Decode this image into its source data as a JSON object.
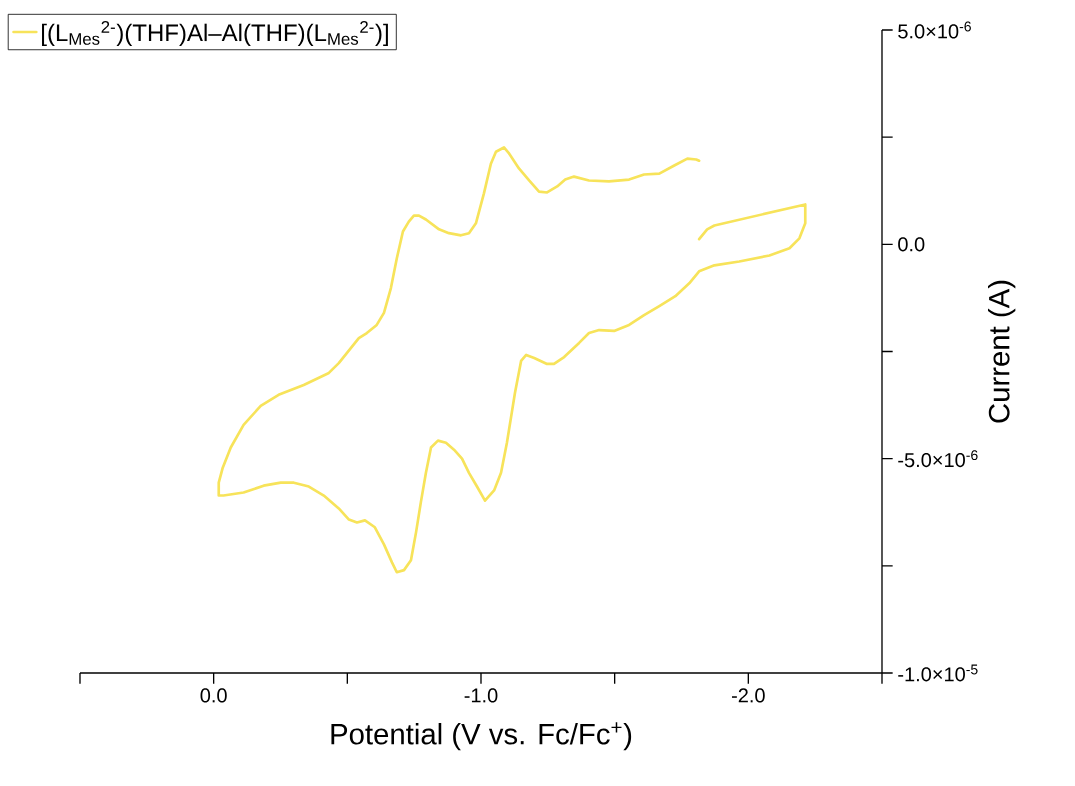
{
  "chart_data": {
    "type": "line",
    "xlabel": "Potential (V vs. Fc/Fc$^{+}$)",
    "ylabel": "Current (A)",
    "xlim": [
      0.5,
      -2.5
    ],
    "ylim": [
      -1e-05,
      5e-06
    ],
    "xticks": [
      {
        "value": 0.5,
        "label": null
      },
      {
        "value": 0.0,
        "label": "0.0"
      },
      {
        "value": -0.5,
        "label": null
      },
      {
        "value": -1.0,
        "label": "-1.0"
      },
      {
        "value": -1.5,
        "label": null
      },
      {
        "value": -2.0,
        "label": "-2.0"
      },
      {
        "value": -2.5,
        "label": null
      }
    ],
    "yticks": [
      {
        "value": -1e-05,
        "label": "-1.0×10$^{-5}$"
      },
      {
        "value": -7.5e-06,
        "label": null
      },
      {
        "value": -5e-06,
        "label": "-5.0×10$^{-6}$"
      },
      {
        "value": -2.5e-06,
        "label": null
      },
      {
        "value": 0,
        "label": "0.0"
      },
      {
        "value": 2.5e-06,
        "label": null
      },
      {
        "value": 5e-06,
        "label": "5.0×10$^{-6}$"
      }
    ],
    "x": [
      -1.816,
      -1.846,
      -1.873,
      -2.213,
      -2.213,
      -2.191,
      -2.154,
      -2.079,
      -1.966,
      -1.873,
      -1.816,
      -1.779,
      -1.727,
      -1.667,
      -1.61,
      -1.554,
      -1.498,
      -1.442,
      -1.404,
      -1.367,
      -1.311,
      -1.273,
      -1.247,
      -1.199,
      -1.169,
      -1.15,
      -1.127,
      -1.097,
      -1.075,
      -1.049,
      -1.015,
      -0.985,
      -0.955,
      -0.929,
      -0.899,
      -0.869,
      -0.839,
      -0.813,
      -0.794,
      -0.775,
      -0.757,
      -0.738,
      -0.712,
      -0.685,
      -0.667,
      -0.637,
      -0.603,
      -0.566,
      -0.536,
      -0.506,
      -0.468,
      -0.412,
      -0.356,
      -0.3,
      -0.251,
      -0.187,
      -0.112,
      -0.037,
      -0.019,
      -0.019,
      -0.034,
      -0.064,
      -0.112,
      -0.176,
      -0.243,
      -0.337,
      -0.431,
      -0.468,
      -0.513,
      -0.543,
      -0.573,
      -0.61,
      -0.637,
      -0.663,
      -0.685,
      -0.708,
      -0.73,
      -0.749,
      -0.768,
      -0.794,
      -0.843,
      -0.88,
      -0.925,
      -0.955,
      -0.981,
      -1.011,
      -1.037,
      -1.056,
      -1.086,
      -1.105,
      -1.142,
      -1.18,
      -1.217,
      -1.247,
      -1.285,
      -1.315,
      -1.348,
      -1.404,
      -1.479,
      -1.554,
      -1.61,
      -1.667,
      -1.723,
      -1.772,
      -1.805,
      -1.816
    ],
    "series": [
      {
        "name": "[(L$_{Mes}$$^{2-}$)(THF)Al–Al(THF)(L$_{Mes}$$^{2-}$)]",
        "color": "#f7e35a",
        "values": [
          1.2e-07,
          3.5e-07,
          4.4e-07,
          9.3e-07,
          4.9e-07,
          1.4e-07,
          -9e-08,
          -2.6e-07,
          -4e-07,
          -4.9e-07,
          -6.3e-07,
          -9.1e-07,
          -1.21e-06,
          -1.44e-06,
          -1.65e-06,
          -1.88e-06,
          -2.02e-06,
          -2e-06,
          -2.07e-06,
          -2.3e-06,
          -2.63e-06,
          -2.79e-06,
          -2.79e-06,
          -2.65e-06,
          -2.58e-06,
          -2.72e-06,
          -3.47e-06,
          -4.63e-06,
          -5.33e-06,
          -5.74e-06,
          -5.98e-06,
          -5.65e-06,
          -5.33e-06,
          -5e-06,
          -4.79e-06,
          -4.63e-06,
          -4.58e-06,
          -4.74e-06,
          -5.33e-06,
          -6.02e-06,
          -6.72e-06,
          -7.37e-06,
          -7.6e-06,
          -7.65e-06,
          -7.42e-06,
          -7e-06,
          -6.6e-06,
          -6.44e-06,
          -6.49e-06,
          -6.42e-06,
          -6.16e-06,
          -5.86e-06,
          -5.65e-06,
          -5.56e-06,
          -5.56e-06,
          -5.63e-06,
          -5.79e-06,
          -5.86e-06,
          -5.86e-06,
          -5.56e-06,
          -5.21e-06,
          -4.74e-06,
          -4.21e-06,
          -3.77e-06,
          -3.51e-06,
          -3.28e-06,
          -3e-06,
          -2.77e-06,
          -2.42e-06,
          -2.19e-06,
          -2.07e-06,
          -1.88e-06,
          -1.6e-06,
          -1.02e-06,
          -3.3e-07,
          3e-07,
          5.3e-07,
          6.7e-07,
          6.7e-07,
          5.8e-07,
          3.5e-07,
          2.6e-07,
          2.1e-07,
          2.6e-07,
          4.9e-07,
          1.19e-06,
          1.88e-06,
          2.16e-06,
          2.26e-06,
          2.12e-06,
          1.77e-06,
          1.49e-06,
          1.23e-06,
          1.21e-06,
          1.35e-06,
          1.51e-06,
          1.58e-06,
          1.49e-06,
          1.47e-06,
          1.51e-06,
          1.63e-06,
          1.65e-06,
          1.84e-06,
          2e-06,
          1.98e-06,
          1.95e-06
        ]
      }
    ],
    "legend": "top left",
    "grid": false,
    "marker": "none",
    "line_style": "solid"
  }
}
